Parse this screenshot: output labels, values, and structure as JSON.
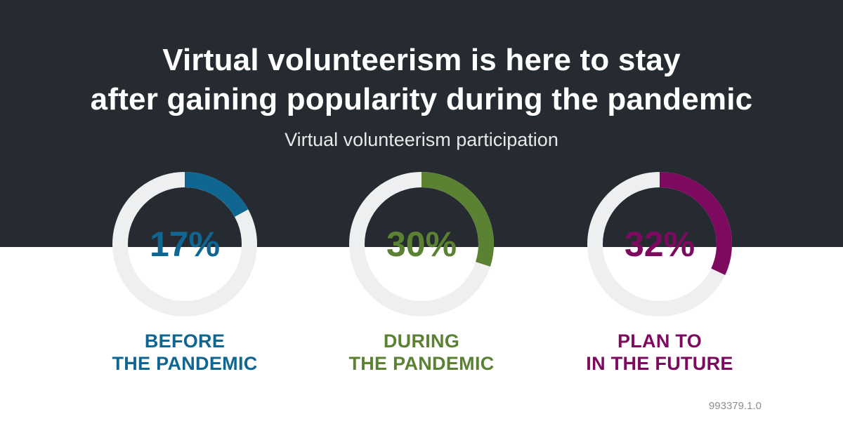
{
  "header": {
    "title_line1": "Virtual volunteerism is here to stay",
    "title_line2": "after gaining popularity during the pandemic",
    "subtitle": "Virtual volunteerism participation"
  },
  "chart_data": {
    "type": "donut",
    "title": "Virtual volunteerism is here to stay after gaining popularity during the pandemic",
    "subtitle": "Virtual volunteerism participation",
    "unit": "%",
    "items": [
      {
        "value": 17,
        "label": "17%",
        "caption_line1": "BEFORE",
        "caption_line2": "THE PANDEMIC",
        "color": "#0f6690"
      },
      {
        "value": 30,
        "label": "30%",
        "caption_line1": "DURING",
        "caption_line2": "THE PANDEMIC",
        "color": "#5a8232"
      },
      {
        "value": 32,
        "label": "32%",
        "caption_line1": "PLAN TO",
        "caption_line2": "IN THE FUTURE",
        "color": "#7d0a5f"
      }
    ],
    "track_color": "#eeeff1",
    "max": 100
  },
  "footer": {
    "code": "993379.1.0"
  }
}
